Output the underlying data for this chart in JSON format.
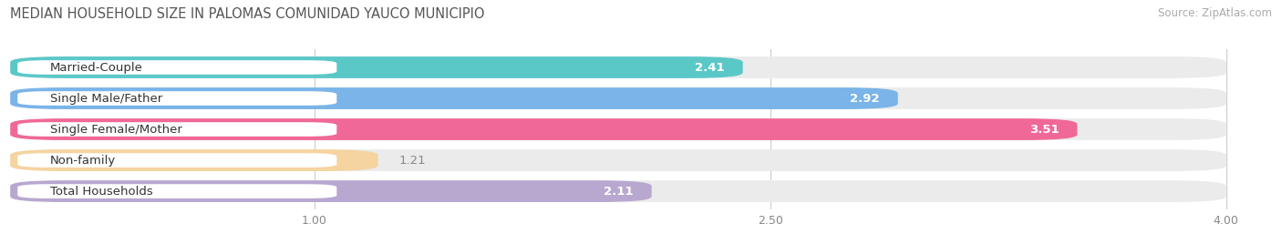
{
  "title": "MEDIAN HOUSEHOLD SIZE IN PALOMAS COMUNIDAD YAUCO MUNICIPIO",
  "source": "Source: ZipAtlas.com",
  "categories": [
    "Married-Couple",
    "Single Male/Father",
    "Single Female/Mother",
    "Non-family",
    "Total Households"
  ],
  "values": [
    2.41,
    2.92,
    3.51,
    1.21,
    2.11
  ],
  "bar_colors": [
    "#5bc8c8",
    "#7ab4e8",
    "#f06898",
    "#f5d4a0",
    "#b8a8d0"
  ],
  "value_colors": [
    "#5bc8c8",
    "#7ab4e8",
    "#f06898",
    "#888888",
    "#b8a8d0"
  ],
  "xlim_max": 4.15,
  "data_max": 4.0,
  "xticks": [
    1.0,
    2.5,
    4.0
  ],
  "title_fontsize": 10.5,
  "source_fontsize": 8.5,
  "label_fontsize": 9.5,
  "value_fontsize": 9.5,
  "background_color": "#ffffff",
  "track_color": "#ebebeb",
  "bar_gap": 0.18
}
